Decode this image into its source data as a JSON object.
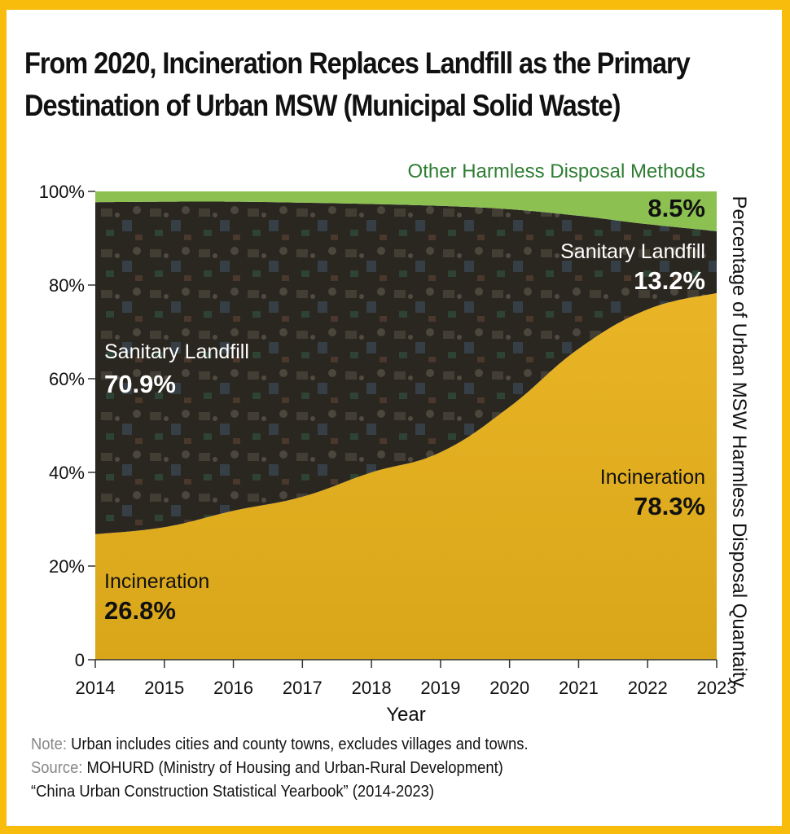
{
  "title_line1": "From 2020, Incineration Replaces Landfill as the Primary",
  "title_line2": "Destination of Urban MSW (Municipal Solid Waste)",
  "colors": {
    "frame": "#f7bc0c",
    "other": "#8cc152",
    "other_label": "#2e7d32",
    "landfill": "#2a2620",
    "incineration": "#e0ac1c"
  },
  "chart_data": {
    "type": "area",
    "stacked": true,
    "normalized": true,
    "title": "From 2020, Incineration Replaces Landfill as the Primary Destination of Urban MSW (Municipal Solid Waste)",
    "xlabel": "Year",
    "ylabel": "Percentage of Urban MSW Harmless Disposal Quantaity",
    "x": [
      2014,
      2015,
      2016,
      2017,
      2018,
      2019,
      2020,
      2021,
      2022,
      2023
    ],
    "xticks": [
      "2014",
      "2015",
      "2016",
      "2017",
      "2018",
      "2019",
      "2020",
      "2021",
      "2022",
      "2023"
    ],
    "yticks": [
      "0",
      "20%",
      "40%",
      "60%",
      "80%",
      "100%"
    ],
    "ytick_values": [
      0,
      20,
      40,
      60,
      80,
      100
    ],
    "ylim": [
      0,
      100
    ],
    "series": [
      {
        "name": "Incineration",
        "values": [
          26.8,
          28.3,
          31.8,
          34.8,
          40.0,
          44.3,
          54.0,
          66.4,
          74.8,
          78.3
        ]
      },
      {
        "name": "Sanitary Landfill",
        "values": [
          70.9,
          69.5,
          66.0,
          62.8,
          57.3,
          52.6,
          42.2,
          28.4,
          18.2,
          13.2
        ]
      },
      {
        "name": "Other Harmless Disposal Methods",
        "values": [
          2.3,
          2.2,
          2.2,
          2.4,
          2.7,
          3.1,
          3.8,
          5.2,
          7.0,
          8.5
        ]
      }
    ],
    "annotations": {
      "landfill_2014": {
        "label": "Sanitary Landfill",
        "value": "70.9%"
      },
      "incineration_2014": {
        "label": "Incineration",
        "value": "26.8%"
      },
      "landfill_2023": {
        "label": "Sanitary Landfill",
        "value": "13.2%"
      },
      "incineration_2023": {
        "label": "Incineration",
        "value": "78.3%"
      },
      "other_2023": {
        "label": "Other Harmless Disposal Methods",
        "value": "8.5%"
      }
    },
    "grid": false,
    "legend": "none (inline labels)"
  },
  "notes": {
    "note_label": "Note:",
    "note_text": " Urban includes cities and county towns, excludes villages and towns.",
    "source_label": "Source:",
    "source_text": " MOHURD (Ministry of Housing and Urban-Rural Development)",
    "source_line2": "“China Urban Construction Statistical Yearbook” (2014-2023)"
  }
}
